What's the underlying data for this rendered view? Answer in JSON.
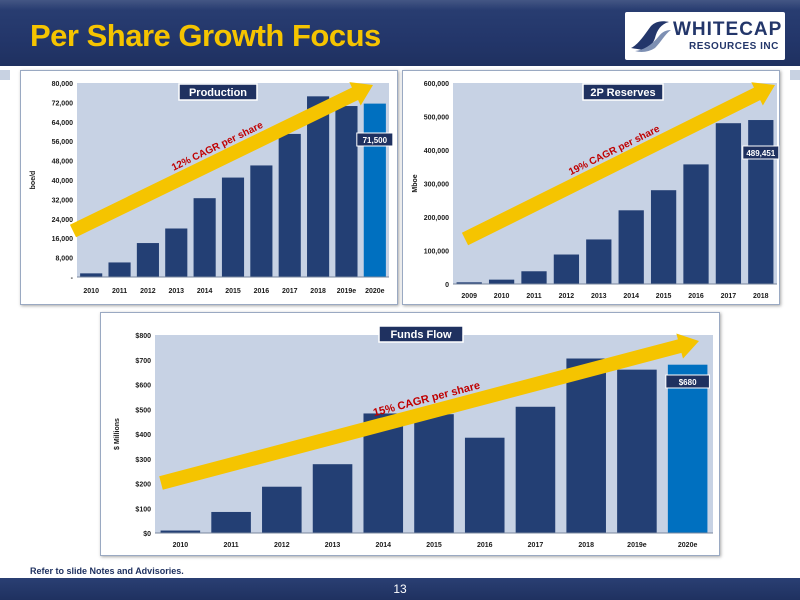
{
  "slide": {
    "title": "Per Share Growth Focus",
    "footnote": "Refer to slide Notes and Advisories.",
    "page_number": "13"
  },
  "logo": {
    "line1": "WHITECAP",
    "line2": "RESOURCES INC"
  },
  "colors": {
    "bar": "#233f74",
    "bar_highlight": "#0070c0",
    "arrow": "#f5c400",
    "title": "#f5c400",
    "plot_bg": "#c7d2e4"
  },
  "chart_data": [
    {
      "type": "bar",
      "title": "Production",
      "ylabel": "boe/d",
      "categories": [
        "2010",
        "2011",
        "2012",
        "2013",
        "2014",
        "2015",
        "2016",
        "2017",
        "2018",
        "2019e",
        "2020e"
      ],
      "values": [
        1500,
        6000,
        14000,
        20000,
        32500,
        41000,
        46000,
        59000,
        74500,
        70500,
        71500
      ],
      "highlight_index": 10,
      "yticks": [
        0,
        8000,
        16000,
        24000,
        32000,
        40000,
        48000,
        56000,
        64000,
        72000,
        80000
      ],
      "ytick_labels": [
        "-",
        "8,000",
        "16,000",
        "24,000",
        "32,000",
        "40,000",
        "48,000",
        "56,000",
        "64,000",
        "72,000",
        "80,000"
      ],
      "ylim": [
        0,
        80000
      ],
      "callout": "71,500",
      "arrow_label": "12% CAGR per share"
    },
    {
      "type": "bar",
      "title": "2P Reserves",
      "ylabel": "Mboe",
      "categories": [
        "2009",
        "2010",
        "2011",
        "2012",
        "2013",
        "2014",
        "2015",
        "2016",
        "2017",
        "2018"
      ],
      "values": [
        5000,
        13000,
        38000,
        88000,
        133000,
        220000,
        280000,
        357000,
        480000,
        489451
      ],
      "highlight_index": -1,
      "yticks": [
        0,
        100000,
        200000,
        300000,
        400000,
        500000,
        600000
      ],
      "ytick_labels": [
        "0",
        "100,000",
        "200,000",
        "300,000",
        "400,000",
        "500,000",
        "600,000"
      ],
      "ylim": [
        0,
        600000
      ],
      "callout": "489,451",
      "arrow_label": "19% CAGR per share"
    },
    {
      "type": "bar",
      "title": "Funds Flow",
      "ylabel": "$ Millions",
      "categories": [
        "2010",
        "2011",
        "2012",
        "2013",
        "2014",
        "2015",
        "2016",
        "2017",
        "2018",
        "2019e",
        "2020e"
      ],
      "values": [
        10,
        85,
        187,
        278,
        483,
        480,
        385,
        510,
        705,
        660,
        680
      ],
      "highlight_index": 10,
      "yticks": [
        0,
        100,
        200,
        300,
        400,
        500,
        600,
        700,
        800
      ],
      "ytick_labels": [
        "$0",
        "$100",
        "$200",
        "$300",
        "$400",
        "$500",
        "$600",
        "$700",
        "$800"
      ],
      "ylim": [
        0,
        800
      ],
      "callout": "$680",
      "arrow_label": "15% CAGR per share"
    }
  ]
}
